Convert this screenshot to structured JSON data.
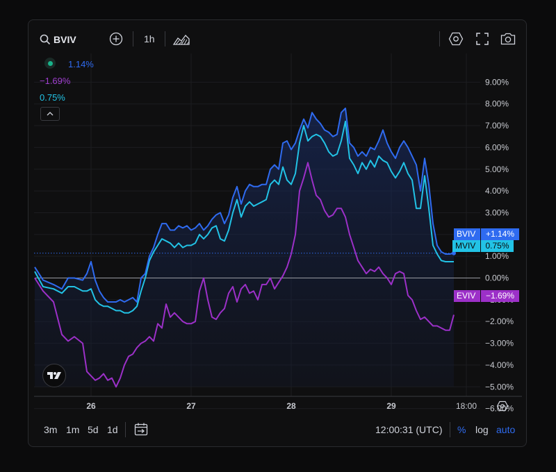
{
  "toolbar": {
    "symbol": "BVIV",
    "interval": "1h"
  },
  "legend": {
    "bviv_value": "1.14%",
    "eviv_value": "−1.69%",
    "mviv_value": "0.75%"
  },
  "price_tags": {
    "bviv_name": "BVIV",
    "bviv_value": "+1.14%",
    "mviv_name": "MVIV",
    "mviv_value": "0.75%",
    "eviv_name": "EVIV",
    "eviv_value": "−1.69%"
  },
  "bottom": {
    "ranges": [
      "3m",
      "1m",
      "5d",
      "1d"
    ],
    "clock": "12:00:31 (UTC)",
    "percent": "%",
    "log": "log",
    "auto": "auto"
  },
  "colors": {
    "bviv": "#2f6bf0",
    "mviv": "#22c3e6",
    "eviv": "#9c30c8",
    "accent": "#2f6bf0"
  },
  "chart_data": {
    "type": "line",
    "yaxis_unit": "%",
    "ylim": [
      -6,
      9
    ],
    "yticks": [
      "9.00%",
      "8.00%",
      "7.00%",
      "6.00%",
      "5.00%",
      "4.00%",
      "3.00%",
      "2.00%",
      "1.00%",
      "0.00%",
      "−1.00%",
      "−2.00%",
      "−3.00%",
      "−4.00%",
      "−5.00%",
      "−6.00%"
    ],
    "ytick_values": [
      9,
      8,
      7,
      6,
      5,
      4,
      3,
      2,
      1,
      0,
      -1,
      -2,
      -3,
      -4,
      -5,
      -6
    ],
    "xticks": [
      "26",
      "27",
      "28",
      "29",
      "18:00"
    ],
    "xtick_hours": [
      24,
      48,
      72,
      96,
      114
    ],
    "x_unit": "hours since 25th 00:00",
    "grid": true,
    "series": [
      {
        "name": "BVIV",
        "color": "#2f6bf0",
        "x": [
          10.5,
          12.5,
          15,
          17,
          18.5,
          20,
          22,
          23,
          24,
          25,
          26,
          27,
          28,
          29,
          30,
          31,
          32,
          33,
          34,
          35,
          36,
          37,
          38,
          39,
          40,
          41,
          42,
          43,
          44,
          45,
          46,
          47,
          48,
          49,
          50,
          51,
          52,
          53,
          54,
          55,
          56,
          57,
          58,
          59,
          60,
          61,
          62,
          63,
          64,
          65,
          66,
          67,
          68,
          69,
          70,
          71,
          72,
          73,
          74,
          75,
          76,
          77,
          78,
          79,
          80,
          81,
          82,
          83,
          84,
          85,
          86,
          87,
          88,
          89,
          90,
          91,
          92,
          93,
          94,
          95,
          96,
          97,
          98,
          99,
          100,
          101,
          102,
          103,
          104,
          105,
          106,
          107,
          108,
          109,
          110,
          111
        ],
        "y": [
          0.5,
          -0.1,
          -0.3,
          -0.5,
          0,
          0,
          -0.1,
          0.2,
          0.75,
          -0.1,
          -0.6,
          -0.9,
          -1.1,
          -1.1,
          -1.1,
          -1.0,
          -1.1,
          -1.0,
          -0.9,
          -1.1,
          0,
          0.2,
          1.0,
          1.4,
          2.0,
          2.5,
          2.5,
          2.2,
          2.2,
          2.4,
          2.3,
          2.4,
          2.2,
          2.3,
          2.5,
          2.2,
          2.4,
          2.7,
          2.9,
          3.0,
          2.5,
          2.9,
          3.7,
          4.2,
          3.4,
          4.0,
          4.3,
          4.2,
          4.2,
          4.3,
          4.3,
          5.0,
          5.2,
          5.0,
          6.2,
          6.3,
          5.9,
          6.2,
          6.8,
          7.3,
          6.9,
          7.6,
          7.3,
          7.1,
          6.8,
          6.7,
          6.5,
          6.6,
          7.6,
          7.8,
          6.2,
          6.0,
          5.6,
          5.8,
          5.6,
          6.0,
          5.9,
          6.3,
          6.8,
          6.2,
          5.8,
          5.5,
          6.0,
          6.3,
          6.0,
          5.6,
          5.2,
          4.0,
          5.5,
          4.3,
          2.5,
          1.5,
          1.2,
          1.1,
          1.1,
          1.14
        ]
      },
      {
        "name": "MVIV",
        "color": "#22c3e6",
        "x": [
          10.5,
          12.5,
          15,
          17,
          18.5,
          20,
          22,
          23,
          24,
          25,
          26,
          27,
          28,
          29,
          30,
          31,
          32,
          33,
          34,
          35,
          36,
          37,
          38,
          39,
          40,
          41,
          42,
          43,
          44,
          45,
          46,
          47,
          48,
          49,
          50,
          51,
          52,
          53,
          54,
          55,
          56,
          57,
          58,
          59,
          60,
          61,
          62,
          63,
          64,
          65,
          66,
          67,
          68,
          69,
          70,
          71,
          72,
          73,
          74,
          75,
          76,
          77,
          78,
          79,
          80,
          81,
          82,
          83,
          84,
          85,
          86,
          87,
          88,
          89,
          90,
          91,
          92,
          93,
          94,
          95,
          96,
          97,
          98,
          99,
          100,
          101,
          102,
          103,
          104,
          105,
          106,
          107,
          108,
          109,
          110,
          111
        ],
        "y": [
          0.3,
          -0.4,
          -0.5,
          -0.7,
          -0.4,
          -0.4,
          -0.6,
          -0.6,
          -0.5,
          -1.0,
          -1.2,
          -1.3,
          -1.3,
          -1.4,
          -1.5,
          -1.5,
          -1.6,
          -1.6,
          -1.5,
          -1.3,
          -0.6,
          0,
          0.8,
          1.2,
          1.5,
          1.8,
          1.7,
          1.6,
          1.4,
          1.6,
          1.4,
          1.5,
          1.5,
          1.6,
          2.0,
          1.8,
          2.0,
          2.3,
          2.4,
          1.8,
          1.7,
          2.2,
          3.0,
          3.6,
          2.8,
          3.3,
          3.5,
          3.3,
          3.4,
          3.5,
          3.6,
          4.3,
          4.5,
          4.3,
          5.1,
          4.5,
          4.3,
          4.8,
          6.2,
          7.0,
          6.3,
          6.5,
          6.6,
          6.5,
          6.2,
          5.8,
          5.6,
          5.7,
          6.3,
          7.2,
          5.5,
          5.2,
          4.8,
          5.3,
          5.0,
          5.4,
          5.1,
          5.6,
          5.4,
          5.3,
          4.9,
          4.6,
          4.9,
          5.3,
          4.8,
          4.5,
          3.2,
          3.2,
          4.7,
          3.2,
          1.5,
          1.1,
          0.8,
          0.75,
          0.75,
          0.75
        ]
      },
      {
        "name": "EVIV",
        "color": "#9c30c8",
        "x": [
          10.5,
          12.5,
          15,
          17,
          18.5,
          20,
          22,
          23,
          24,
          25,
          26,
          27,
          28,
          29,
          30,
          31,
          32,
          33,
          34,
          35,
          36,
          37,
          38,
          39,
          40,
          41,
          42,
          43,
          44,
          45,
          46,
          47,
          48,
          49,
          50,
          51,
          52,
          53,
          54,
          55,
          56,
          57,
          58,
          59,
          60,
          61,
          62,
          63,
          64,
          65,
          66,
          67,
          68,
          69,
          70,
          71,
          72,
          73,
          74,
          75,
          76,
          77,
          78,
          79,
          80,
          81,
          82,
          83,
          84,
          85,
          86,
          87,
          88,
          89,
          90,
          91,
          92,
          93,
          94,
          95,
          96,
          97,
          98,
          99,
          100,
          101,
          102,
          103,
          104,
          105,
          106,
          107,
          108,
          109,
          110,
          111
        ],
        "y": [
          0,
          -0.6,
          -1.1,
          -2.6,
          -2.9,
          -2.7,
          -3.0,
          -4.3,
          -4.5,
          -4.7,
          -4.6,
          -4.4,
          -4.7,
          -4.6,
          -5.0,
          -4.6,
          -4.0,
          -3.6,
          -3.5,
          -3.2,
          -3.0,
          -2.9,
          -2.7,
          -2.9,
          -2.1,
          -2.3,
          -1.2,
          -1.8,
          -1.6,
          -1.8,
          -2.0,
          -2.1,
          -2.1,
          -2.0,
          -0.6,
          0.0,
          -1.0,
          -1.8,
          -1.9,
          -1.6,
          -1.4,
          -0.7,
          -0.4,
          -1.1,
          -0.5,
          -0.3,
          -0.7,
          -0.6,
          -1.0,
          -0.3,
          -0.3,
          0.0,
          -0.5,
          -0.2,
          0.1,
          0.5,
          1.1,
          2.0,
          4.0,
          4.6,
          5.3,
          4.5,
          3.8,
          3.6,
          3.1,
          2.8,
          2.9,
          3.2,
          3.2,
          2.8,
          2.0,
          1.4,
          0.8,
          0.5,
          0.2,
          0.4,
          0.3,
          0.5,
          0.2,
          0.0,
          -0.3,
          0.2,
          0.3,
          0.2,
          -0.8,
          -1.0,
          -1.5,
          -1.9,
          -1.8,
          -2.0,
          -2.2,
          -2.2,
          -2.3,
          -2.4,
          -2.4,
          -1.69
        ]
      }
    ]
  }
}
